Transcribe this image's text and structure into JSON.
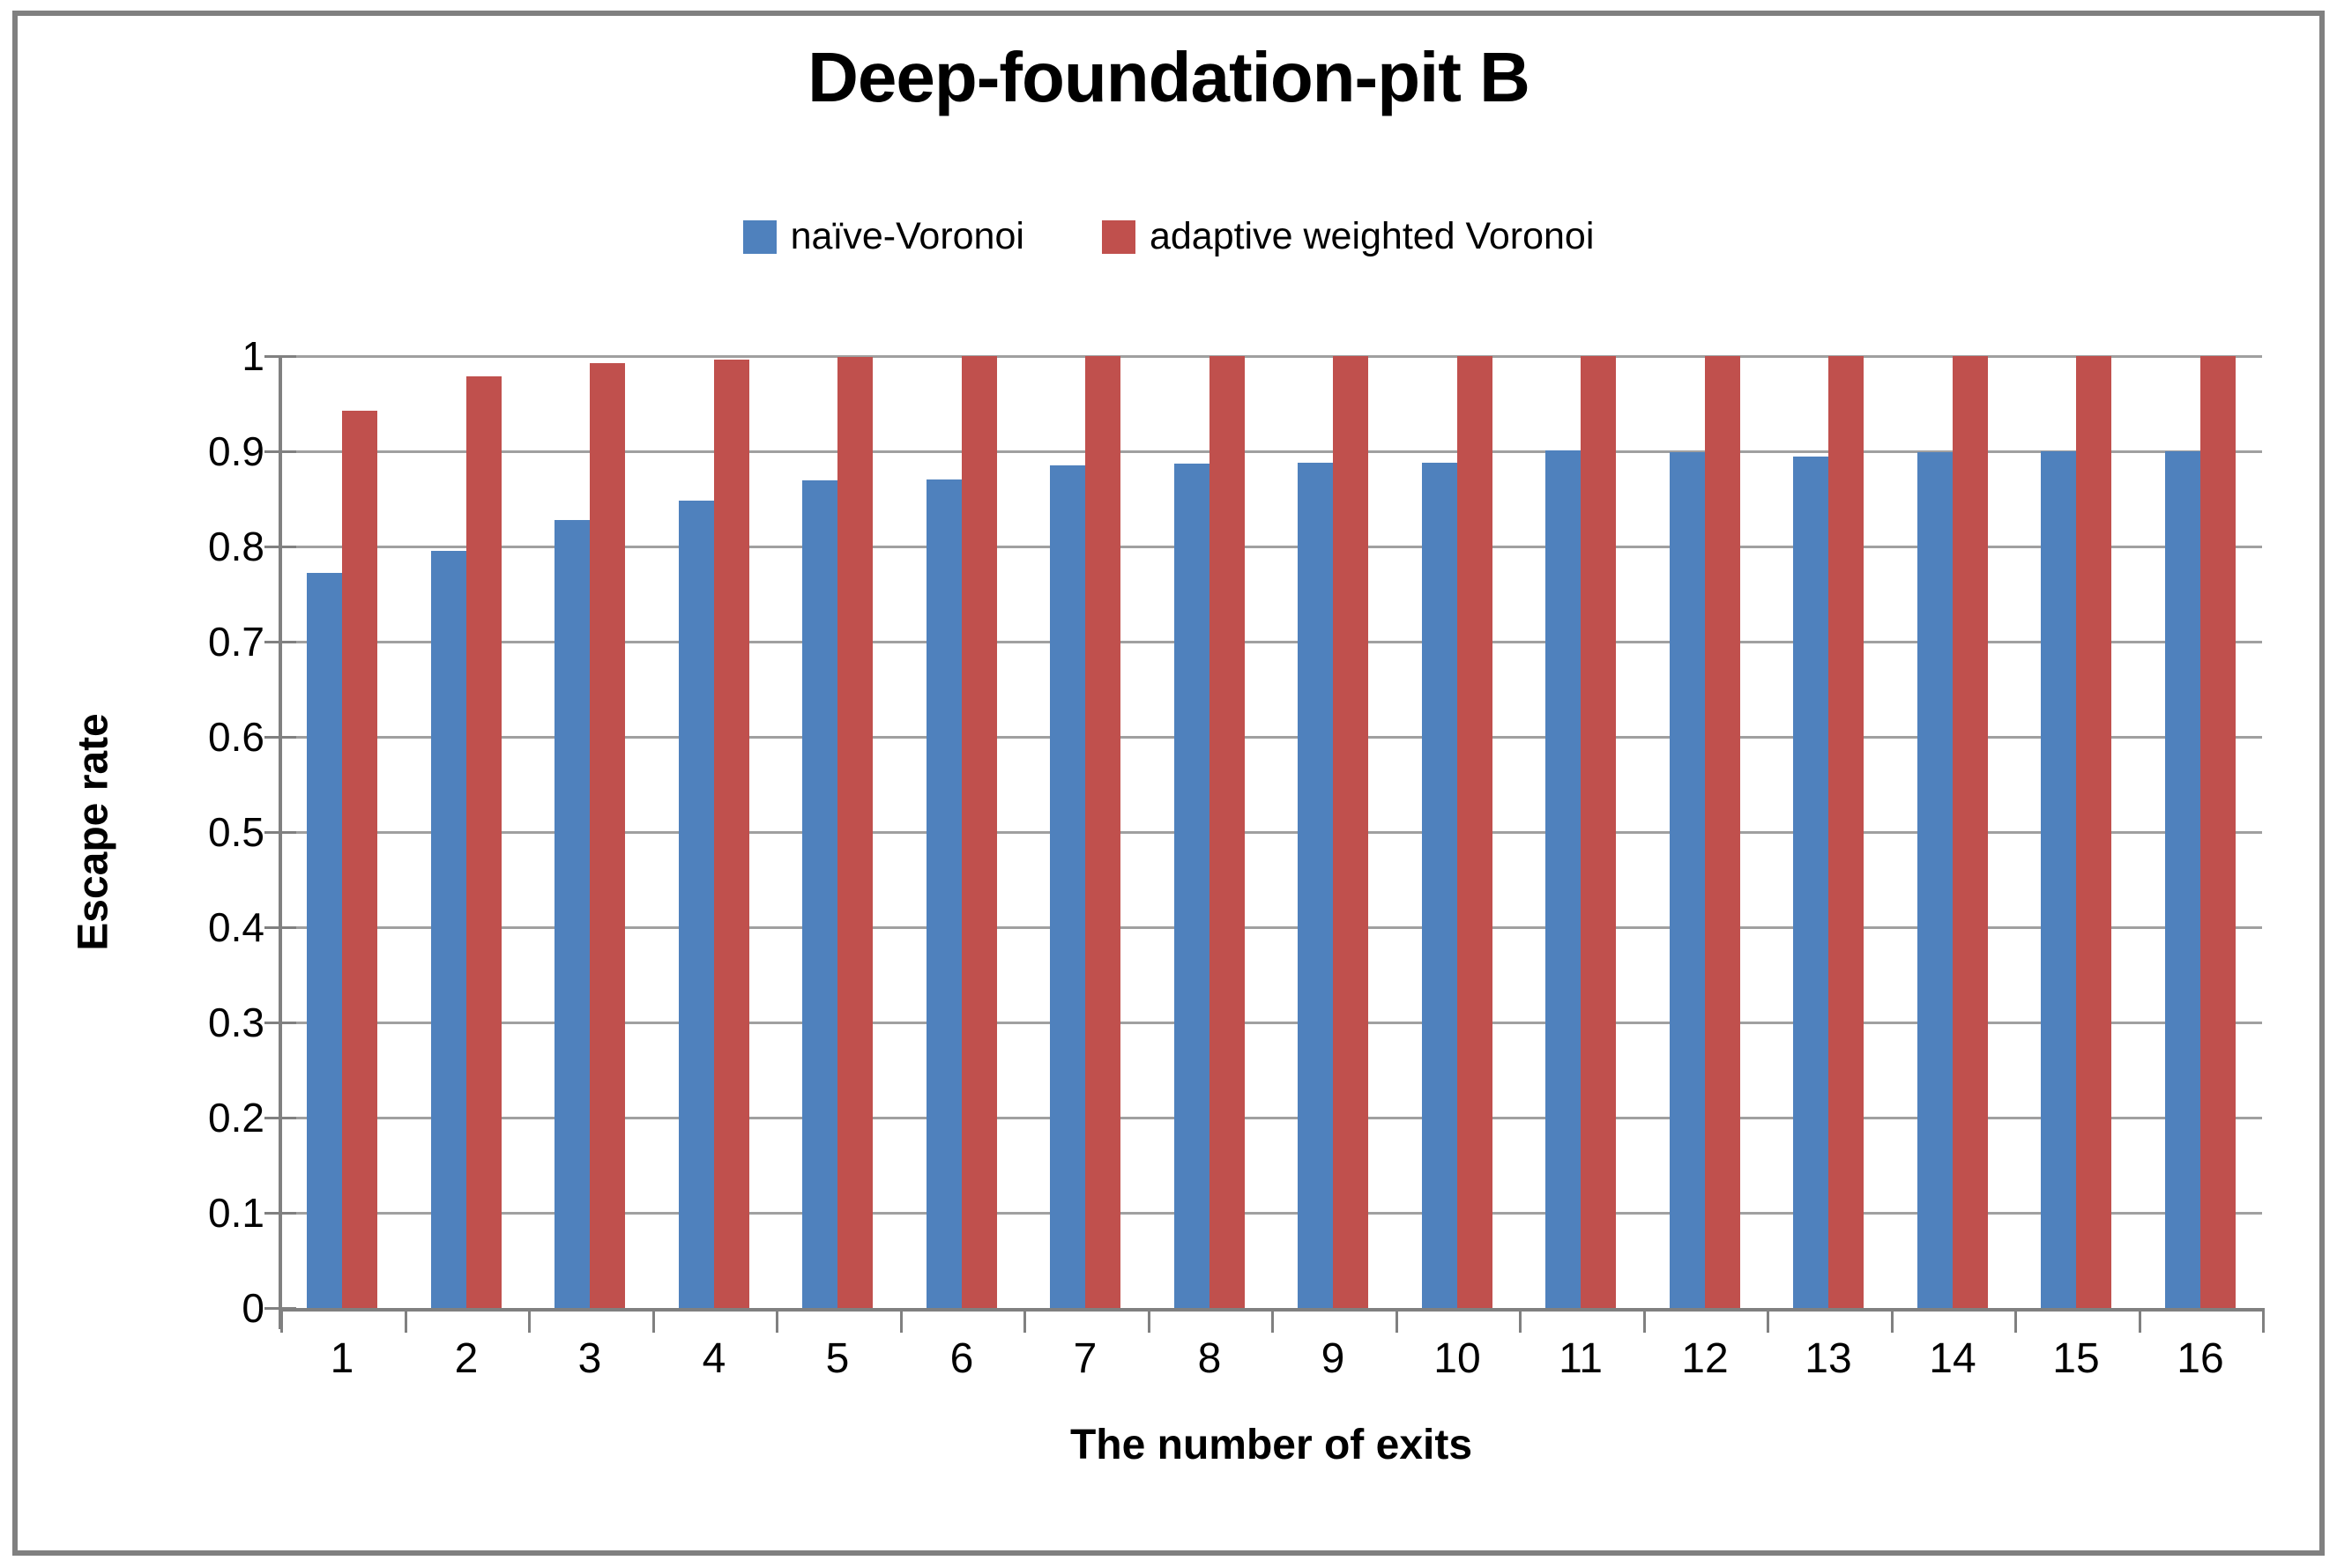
{
  "chart_data": {
    "type": "bar",
    "title": "Deep-foundation-pit B",
    "xlabel": "The number of exits",
    "ylabel": "Escape rate",
    "categories": [
      "1",
      "2",
      "3",
      "4",
      "5",
      "6",
      "7",
      "8",
      "9",
      "10",
      "11",
      "12",
      "13",
      "14",
      "15",
      "16"
    ],
    "series": [
      {
        "name": "naïve-Voronoi",
        "color": "#4F81BD",
        "values": [
          0.772,
          0.795,
          0.828,
          0.848,
          0.869,
          0.87,
          0.885,
          0.887,
          0.888,
          0.888,
          0.901,
          0.899,
          0.894,
          0.899,
          0.9,
          0.9
        ]
      },
      {
        "name": "adaptive weighted Voronoi",
        "color": "#C0504D",
        "values": [
          0.943,
          0.979,
          0.993,
          0.996,
          0.999,
          1.0,
          1.0,
          1.0,
          1.0,
          1.0,
          1.0,
          1.0,
          1.0,
          1.0,
          1.0,
          1.0
        ]
      }
    ],
    "ylim": [
      0,
      1
    ],
    "ytick_labels": [
      "1",
      "0.9",
      "0.8",
      "0.7",
      "0.6",
      "0.5",
      "0.4",
      "0.3",
      "0.2",
      "0.1",
      "0"
    ],
    "ytick_values": [
      1,
      0.9,
      0.8,
      0.7,
      0.6,
      0.5,
      0.4,
      0.3,
      0.2,
      0.1,
      0
    ],
    "grid": "horizontal",
    "legend_position": "top-center"
  },
  "colors": {
    "gridline": "#A0A0A0",
    "axis": "#808080",
    "frame_border": "#808080",
    "background": "#FFFFFF",
    "text": "#000000"
  }
}
